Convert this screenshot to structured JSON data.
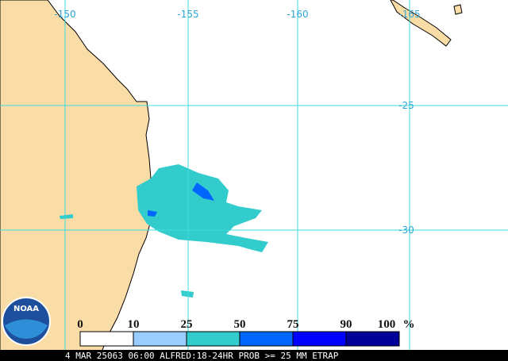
{
  "map": {
    "lon_labels": [
      "-150",
      "-155",
      "-160",
      "-165"
    ],
    "lat_labels": [
      "-25",
      "-30"
    ]
  },
  "logo": "NOAA",
  "legend": {
    "labels": [
      "0",
      "10",
      "25",
      "50",
      "75",
      "90",
      "100"
    ],
    "unit": "%",
    "colors": [
      "#ffffff",
      "#99ccff",
      "#33cccc",
      "#0066ff",
      "#0000ff",
      "#000099"
    ]
  },
  "footer": "4 MAR 25063 06:00 ALFRED:18-24HR PROB >= 25 MM ETRAP"
}
